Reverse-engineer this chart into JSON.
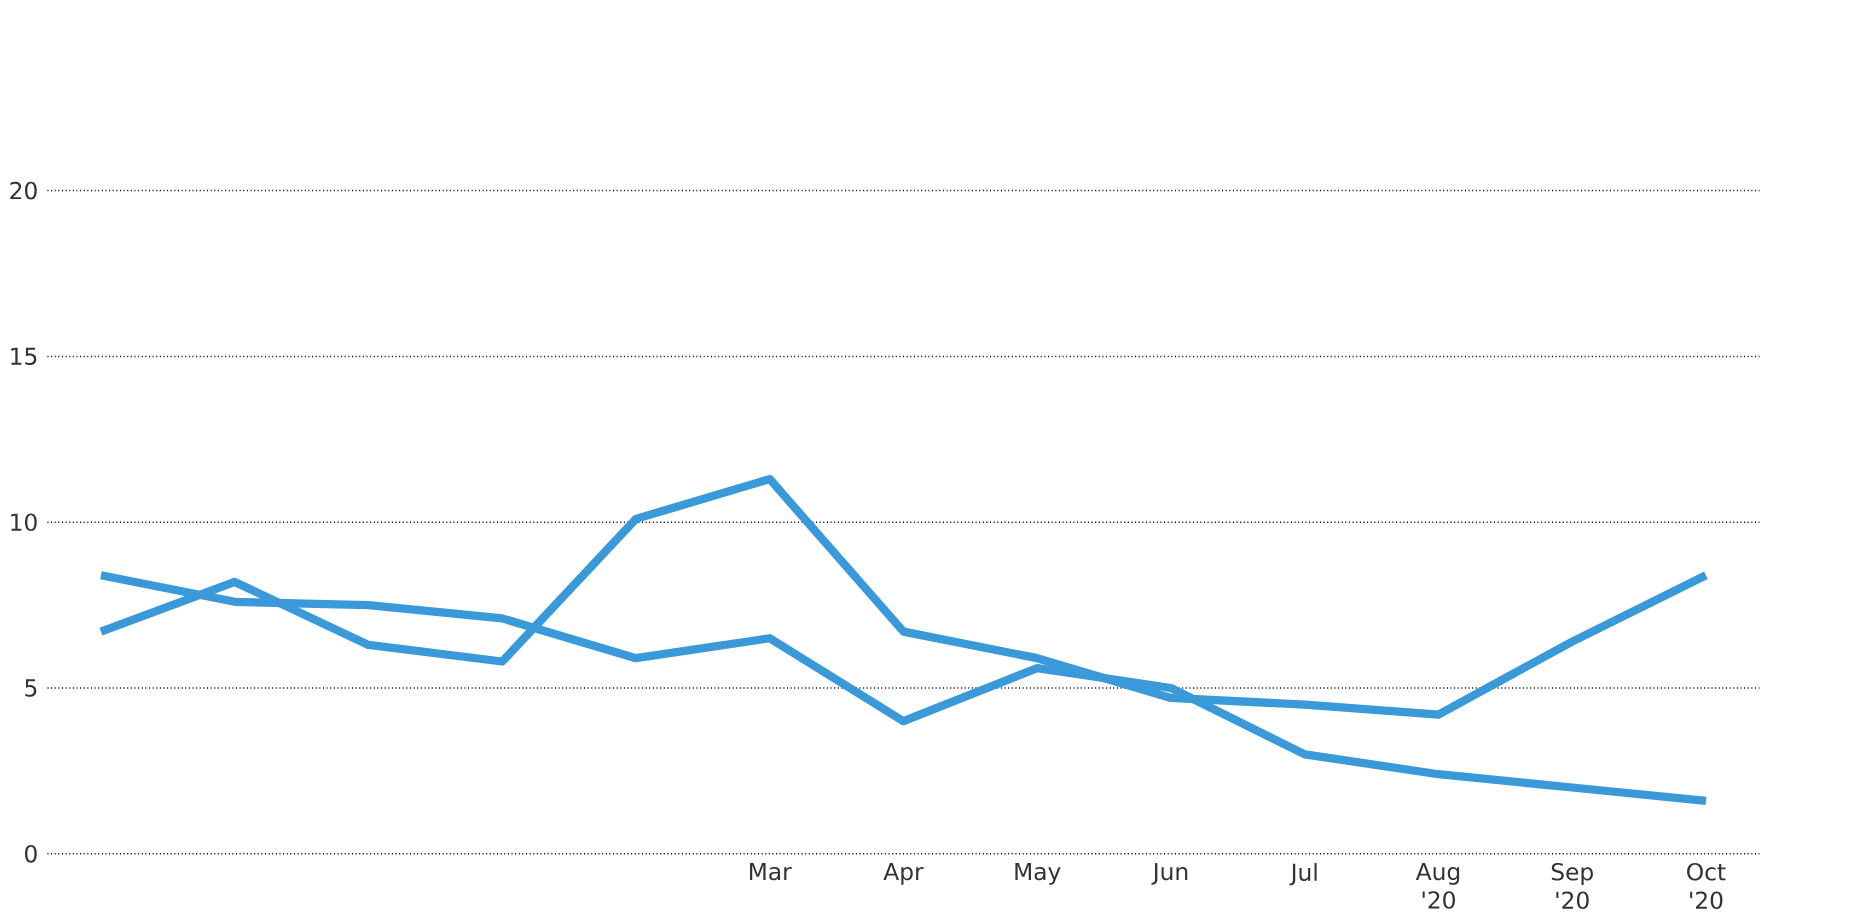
{
  "chart_data": {
    "type": "line",
    "categories": [
      null,
      null,
      null,
      null,
      null,
      "Mar",
      "Apr",
      "May",
      "Jun",
      "Jul",
      "Aug '20",
      "Sep '20",
      "Oct '20"
    ],
    "series": [
      {
        "color": "#3a9ad9",
        "values": [
          6.7,
          8.2,
          6.3,
          5.8,
          10.1,
          11.3,
          6.7,
          5.9,
          4.7,
          4.5,
          4.2,
          6.4,
          8.4
        ]
      },
      {
        "color": "#3a9ad9",
        "values": [
          8.4,
          7.6,
          7.5,
          7.1,
          5.9,
          6.5,
          4.0,
          5.6,
          5.0,
          3.0,
          2.4,
          2.0,
          1.6
        ]
      }
    ],
    "ylim": [
      0,
      20
    ],
    "yticks": [
      0,
      5,
      10,
      15,
      20
    ],
    "grid": "y",
    "marker": "none",
    "line_style": "solid"
  }
}
